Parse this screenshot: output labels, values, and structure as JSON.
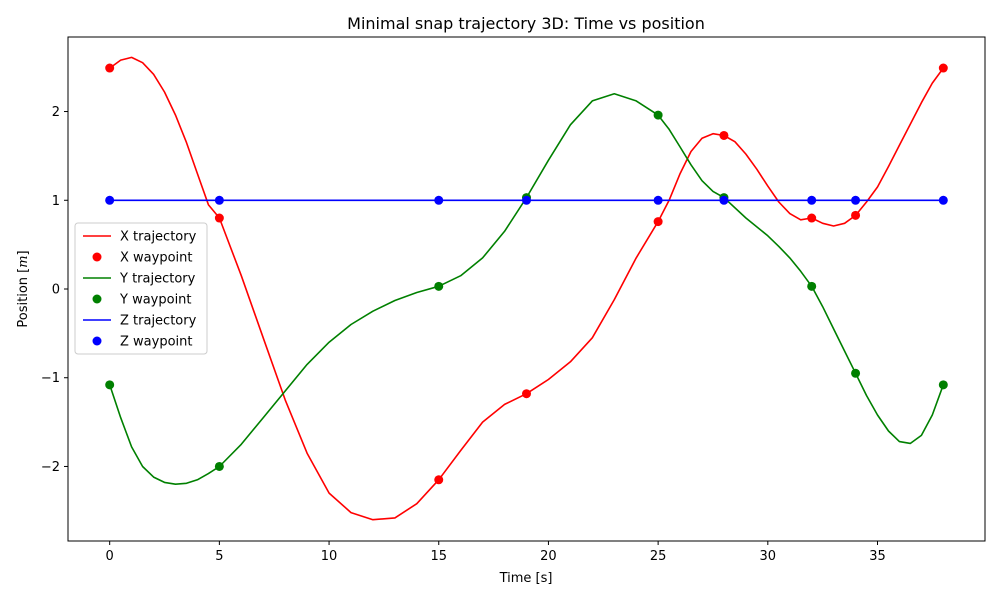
{
  "chart_data": {
    "type": "line",
    "title": "Minimal snap trajectory 3D: Time vs position",
    "xlabel": "Time [s]",
    "ylabel_prefix": "Position [",
    "ylabel_unit": "m",
    "ylabel_suffix": "]",
    "xlim": [
      -1.9,
      39.9
    ],
    "ylim": [
      -2.84,
      2.84
    ],
    "xticks": [
      0,
      5,
      10,
      15,
      20,
      25,
      30,
      35
    ],
    "xtick_labels": [
      "0",
      "5",
      "10",
      "15",
      "20",
      "25",
      "30",
      "35"
    ],
    "yticks": [
      -2,
      -1,
      0,
      1,
      2
    ],
    "ytick_labels": [
      "−2",
      "−1",
      "0",
      "1",
      "2"
    ],
    "grid": false,
    "legend_position": "center-left",
    "series": [
      {
        "name": "X trajectory",
        "kind": "line",
        "color": "#ff0000",
        "x": [
          0,
          0.5,
          1,
          1.5,
          2,
          2.5,
          3,
          3.5,
          4,
          4.5,
          5,
          6,
          7,
          8,
          9,
          10,
          11,
          12,
          13,
          14,
          15,
          16,
          17,
          18,
          19,
          20,
          21,
          22,
          23,
          24,
          25,
          25.5,
          26,
          26.5,
          27,
          27.5,
          28,
          28.5,
          29,
          29.5,
          30,
          30.5,
          31,
          31.5,
          32,
          32.5,
          33,
          33.5,
          34,
          34.5,
          35,
          35.5,
          36,
          36.5,
          37,
          37.5,
          38
        ],
        "y": [
          2.49,
          2.58,
          2.61,
          2.55,
          2.42,
          2.22,
          1.96,
          1.65,
          1.3,
          0.95,
          0.8,
          0.15,
          -0.55,
          -1.25,
          -1.85,
          -2.3,
          -2.52,
          -2.6,
          -2.58,
          -2.42,
          -2.15,
          -1.82,
          -1.5,
          -1.3,
          -1.18,
          -1.02,
          -0.82,
          -0.55,
          -0.12,
          0.35,
          0.76,
          1.0,
          1.3,
          1.55,
          1.7,
          1.75,
          1.73,
          1.66,
          1.52,
          1.35,
          1.16,
          0.98,
          0.85,
          0.78,
          0.8,
          0.74,
          0.71,
          0.74,
          0.83,
          0.98,
          1.15,
          1.38,
          1.62,
          1.86,
          2.1,
          2.32,
          2.49
        ]
      },
      {
        "name": "X waypoint",
        "kind": "scatter",
        "color": "#ff0000",
        "x": [
          0,
          5,
          15,
          19,
          25,
          28,
          32,
          34,
          38
        ],
        "y": [
          2.49,
          0.8,
          -2.15,
          -1.18,
          0.76,
          1.73,
          0.8,
          0.83,
          2.49
        ]
      },
      {
        "name": "Y trajectory",
        "kind": "line",
        "color": "#008000",
        "x": [
          0,
          0.5,
          1,
          1.5,
          2,
          2.5,
          3,
          3.5,
          4,
          4.5,
          5,
          6,
          7,
          8,
          9,
          10,
          11,
          12,
          13,
          14,
          15,
          16,
          17,
          18,
          19,
          20,
          21,
          22,
          23,
          24,
          25,
          25.5,
          26,
          26.5,
          27,
          27.5,
          28,
          29,
          30,
          30.5,
          31,
          31.5,
          32,
          32.5,
          33,
          33.5,
          34,
          34.5,
          35,
          35.5,
          36,
          36.5,
          37,
          37.5,
          38
        ],
        "y": [
          -1.08,
          -1.45,
          -1.78,
          -2.0,
          -2.12,
          -2.18,
          -2.2,
          -2.19,
          -2.15,
          -2.08,
          -2.0,
          -1.75,
          -1.45,
          -1.15,
          -0.85,
          -0.6,
          -0.4,
          -0.25,
          -0.13,
          -0.04,
          0.03,
          0.15,
          0.35,
          0.65,
          1.03,
          1.45,
          1.85,
          2.12,
          2.2,
          2.12,
          1.96,
          1.8,
          1.6,
          1.4,
          1.22,
          1.1,
          1.03,
          0.8,
          0.6,
          0.48,
          0.35,
          0.2,
          0.03,
          -0.2,
          -0.45,
          -0.7,
          -0.95,
          -1.2,
          -1.42,
          -1.6,
          -1.72,
          -1.74,
          -1.65,
          -1.42,
          -1.08
        ]
      },
      {
        "name": "Y waypoint",
        "kind": "scatter",
        "color": "#008000",
        "x": [
          0,
          5,
          15,
          19,
          25,
          28,
          32,
          34,
          38
        ],
        "y": [
          -1.08,
          -2.0,
          0.03,
          1.03,
          1.96,
          1.03,
          0.03,
          -0.95,
          -1.08
        ]
      },
      {
        "name": "Z trajectory",
        "kind": "line",
        "color": "#0000ff",
        "x": [
          0,
          38
        ],
        "y": [
          1,
          1
        ]
      },
      {
        "name": "Z waypoint",
        "kind": "scatter",
        "color": "#0000ff",
        "x": [
          0,
          5,
          15,
          19,
          25,
          28,
          32,
          34,
          38
        ],
        "y": [
          1,
          1,
          1,
          1,
          1,
          1,
          1,
          1,
          1
        ]
      }
    ]
  }
}
